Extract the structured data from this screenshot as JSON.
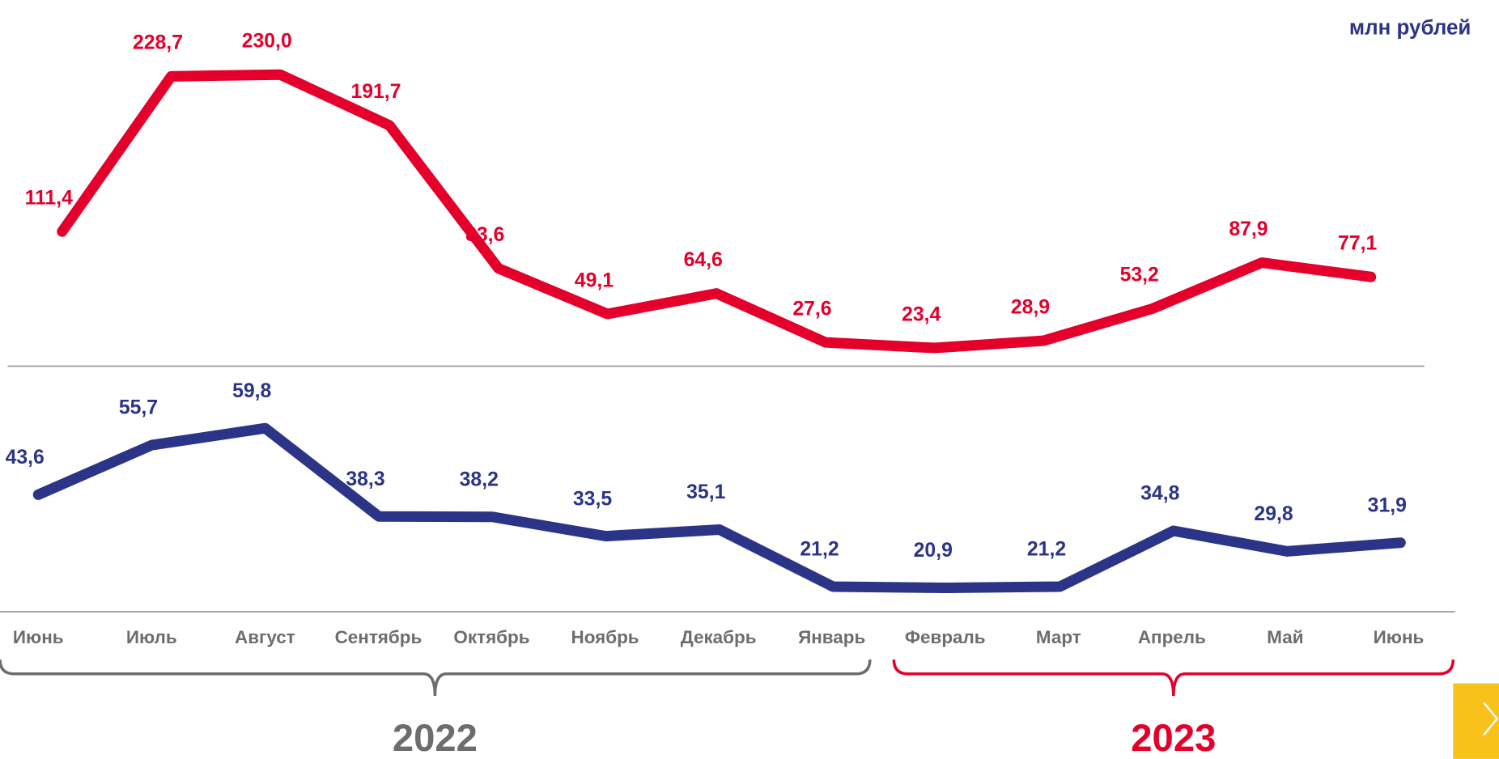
{
  "chart_data": {
    "type": "line",
    "unit_label": "млн рублей",
    "categories": [
      "Июнь",
      "Июль",
      "Август",
      "Сентябрь",
      "Октябрь",
      "Ноябрь",
      "Декабрь",
      "Январь",
      "Февраль",
      "Март",
      "Апрель",
      "Май",
      "Июнь"
    ],
    "series": [
      {
        "color": "#e4002b",
        "values": [
          111.4,
          228.7,
          230.0,
          191.7,
          83.6,
          49.1,
          64.6,
          27.6,
          23.4,
          28.9,
          53.2,
          87.9,
          77.1
        ],
        "value_labels": [
          "111,4",
          "228,7",
          "230,0",
          "191,7",
          "83,6",
          "49,1",
          "64,6",
          "27,6",
          "23,4",
          "28,9",
          "53,2",
          "87,9",
          "77,1"
        ]
      },
      {
        "color": "#2b3486",
        "values": [
          43.6,
          55.7,
          59.8,
          38.3,
          38.2,
          33.5,
          35.1,
          21.2,
          20.9,
          21.2,
          34.8,
          29.8,
          31.9
        ],
        "value_labels": [
          "43,6",
          "55,7",
          "59,8",
          "38,3",
          "38,2",
          "33,5",
          "35,1",
          "21,2",
          "20,9",
          "21,2",
          "34,8",
          "29,8",
          "31,9"
        ]
      }
    ],
    "year_groups": [
      {
        "label": "2022",
        "color": "#6d6d6d"
      },
      {
        "label": "2023",
        "color": "#e4002b"
      }
    ]
  }
}
